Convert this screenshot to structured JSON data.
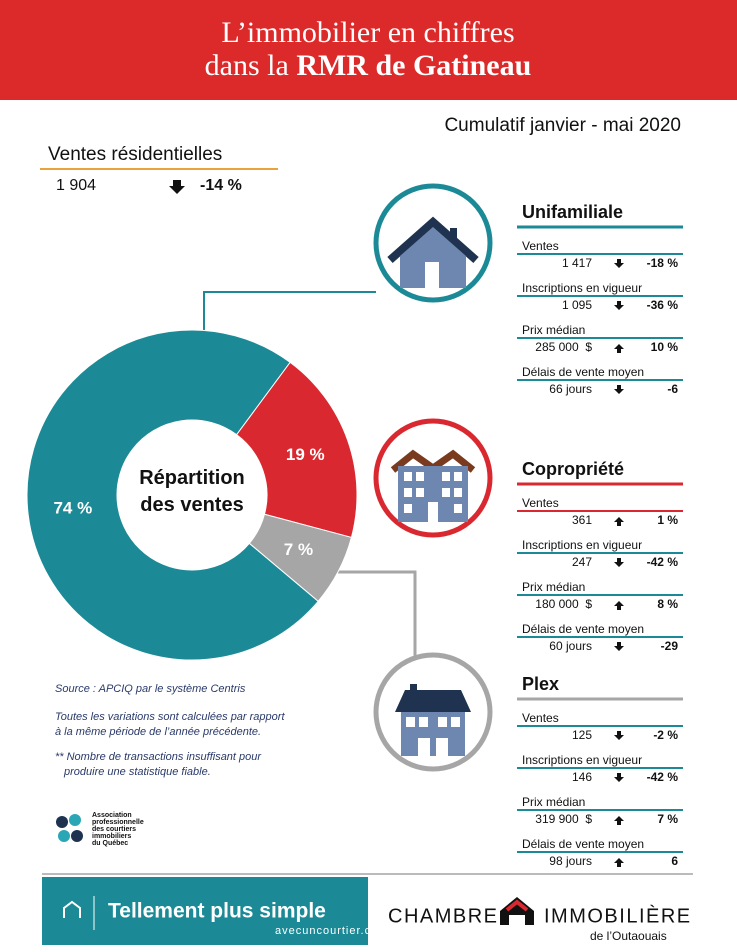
{
  "header": {
    "title_line1": "L’immobilier en chiffres",
    "title_line2_prefix": "dans la",
    "title_line2_bold": "RMR de Gatineau"
  },
  "period": "Cumulatif janvier - mai 2020",
  "summary": {
    "label": "Ventes résidentielles",
    "value": "1 904",
    "change": "-14 %"
  },
  "chart_data": {
    "type": "pie",
    "title": "Répartition des ventes",
    "values": [
      74,
      19,
      7
    ],
    "value_labels": [
      "74 %",
      "19 %",
      "7 %"
    ],
    "colors": [
      "#1b8a96",
      "#d9282f",
      "#a6a6a6"
    ],
    "donut": true
  },
  "sections": [
    {
      "title": "Unifamiliale",
      "rows": [
        {
          "label": "Ventes",
          "value": "1 417",
          "change": "-18 %"
        },
        {
          "label": "Inscriptions en vigueur",
          "value": "1 095",
          "change": "-36 %"
        },
        {
          "label": "Prix médian",
          "value": "285 000  $",
          "change": "10 %"
        },
        {
          "label": "Délais de vente moyen",
          "value": "66 jours",
          "change": "-6"
        }
      ]
    },
    {
      "title": "Copropriété",
      "rows": [
        {
          "label": "Ventes",
          "value": "361",
          "change": "1 %"
        },
        {
          "label": "Inscriptions en vigueur",
          "value": "247",
          "change": "-42 %"
        },
        {
          "label": "Prix médian",
          "value": "180 000  $",
          "change": "8 %"
        },
        {
          "label": "Délais de vente moyen",
          "value": "60 jours",
          "change": "-29"
        }
      ]
    },
    {
      "title": "Plex",
      "rows": [
        {
          "label": "Ventes",
          "value": "125",
          "change": "-2 %"
        },
        {
          "label": "Inscriptions en vigueur",
          "value": "146",
          "change": "-42 %"
        },
        {
          "label": "Prix médian",
          "value": "319 900  $",
          "change": "7 %"
        },
        {
          "label": "Délais de vente moyen",
          "value": "98 jours",
          "change": "6"
        }
      ]
    }
  ],
  "notes": {
    "source": "Source : APCIQ par le système Centris",
    "variations": [
      "Toutes les variations sont calculées par rapport",
      "à la même période de l’année précédente."
    ],
    "insufficient": [
      "** Nombre de transactions insuffisant pour",
      "produire une statistique fiable."
    ]
  },
  "association": [
    "Association",
    "professionnelle",
    "des courtiers",
    "immobiliers",
    "du Québec"
  ],
  "footer": {
    "slogan": "Tellement plus simple",
    "url": "avecuncourtier.com",
    "brand_left": "CHAMBRE",
    "brand_right": "IMMOBILIÈRE",
    "brand_sub": "de l’Outaouais"
  }
}
